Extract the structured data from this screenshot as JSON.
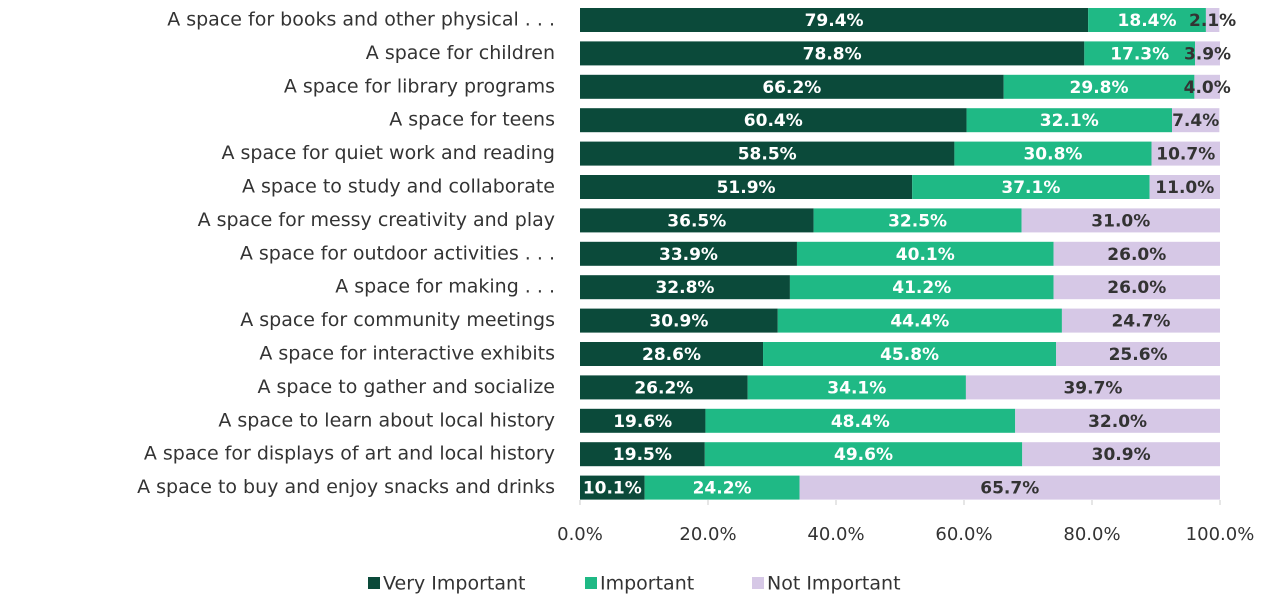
{
  "chart_data": {
    "type": "stacked_barh",
    "categories": [
      "A space for books and other physical . . .",
      "A space for children",
      "A space for library programs",
      "A space for teens",
      "A space for quiet work and reading",
      "A space to study and collaborate",
      "A space for messy creativity and play",
      "A space for outdoor activities . . .",
      "A space for making . . .",
      "A space for community meetings",
      "A space for interactive exhibits",
      "A space to gather and socialize",
      "A space to learn about local history",
      "A space for displays of art and local history",
      "A space to buy and enjoy snacks and drinks"
    ],
    "series": [
      {
        "name": "Very Important",
        "color": "#0b4a3a",
        "values": [
          79.4,
          78.8,
          66.2,
          60.4,
          58.5,
          51.9,
          36.5,
          33.9,
          32.8,
          30.9,
          28.6,
          26.2,
          19.6,
          19.5,
          10.1
        ],
        "value_labels": [
          "79.4%",
          "78.8%",
          "66.2%",
          "60.4%",
          "58.5%",
          "51.9%",
          "36.5%",
          "33.9%",
          "32.8%",
          "30.9%",
          "28.6%",
          "26.2%",
          "19.6%",
          "19.5%",
          "10.1%"
        ]
      },
      {
        "name": "Important",
        "color": "#1fb985",
        "values": [
          18.4,
          17.3,
          29.8,
          32.1,
          30.8,
          37.1,
          32.5,
          40.1,
          41.2,
          44.4,
          45.8,
          34.1,
          48.4,
          49.6,
          24.2
        ],
        "value_labels": [
          "18.4%",
          "17.3%",
          "29.8%",
          "32.1%",
          "30.8%",
          "37.1%",
          "32.5%",
          "40.1%",
          "41.2%",
          "44.4%",
          "45.8%",
          "34.1%",
          "48.4%",
          "49.6%",
          "24.2%"
        ]
      },
      {
        "name": "Not Important",
        "color": "#d6c8e6",
        "values": [
          2.1,
          3.9,
          4.0,
          7.4,
          10.7,
          11.0,
          31.0,
          26.0,
          26.0,
          24.7,
          25.6,
          39.7,
          32.0,
          30.9,
          65.7
        ],
        "value_labels": [
          "2.1%",
          "3.9%",
          "4.0%",
          "7.4%",
          "10.7%",
          "11.0%",
          "31.0%",
          "26.0%",
          "26.0%",
          "24.7%",
          "25.6%",
          "39.7%",
          "32.0%",
          "30.9%",
          "65.7%"
        ]
      }
    ],
    "xlim": [
      0,
      100
    ],
    "xticks": [
      {
        "value": 0,
        "label": "0.0%"
      },
      {
        "value": 20,
        "label": "20.0%"
      },
      {
        "value": 40,
        "label": "40.0%"
      },
      {
        "value": 60,
        "label": "60.0%"
      },
      {
        "value": 80,
        "label": "80.0%"
      },
      {
        "value": 100,
        "label": "100.0%"
      }
    ],
    "legend": "bottom"
  }
}
